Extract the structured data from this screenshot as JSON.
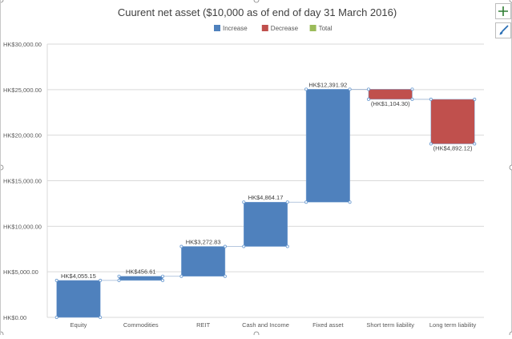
{
  "chart_data": {
    "type": "waterfall",
    "title": "Cuurent net asset  ($10,000 as of end of day 31 March 2016)",
    "legend": {
      "position": "top",
      "entries": [
        {
          "name": "Increase",
          "color": "#4f81bd"
        },
        {
          "name": "Decrease",
          "color": "#c0504d"
        },
        {
          "name": "Total",
          "color": "#9bbb59"
        }
      ]
    },
    "categories": [
      "Equity",
      "Commodities",
      "REIT",
      "Cash and Income",
      "Fixed asset",
      "Short term liability",
      "Long term liability"
    ],
    "values": [
      4055.15,
      456.61,
      3272.83,
      4864.17,
      12391.92,
      -1104.3,
      -4892.12
    ],
    "data_labels": [
      "HK$4,055.15",
      "HK$456.61",
      "HK$3,272.83",
      "HK$4,864.17",
      "HK$12,391.92",
      "(HK$1,104.30)",
      "(HK$4,892.12)"
    ],
    "y_ticks": [
      {
        "value": 0,
        "label": "HK$0.00"
      },
      {
        "value": 5000,
        "label": "HK$5,000.00"
      },
      {
        "value": 10000,
        "label": "HK$10,000.00"
      },
      {
        "value": 15000,
        "label": "HK$15,000.00"
      },
      {
        "value": 20000,
        "label": "HK$20,000.00"
      },
      {
        "value": 25000,
        "label": "HK$25,000.00"
      },
      {
        "value": 30000,
        "label": "HK$30,000.00"
      }
    ],
    "ylim": [
      0,
      30000
    ],
    "grid": true,
    "colors": {
      "increase": "#4f81bd",
      "decrease": "#c0504d",
      "total": "#9bbb59",
      "grid": "#d9d9d9",
      "text": "#595959"
    }
  },
  "toolbar": {
    "add_icon": "plus-icon",
    "style_icon": "paintbrush-icon"
  }
}
